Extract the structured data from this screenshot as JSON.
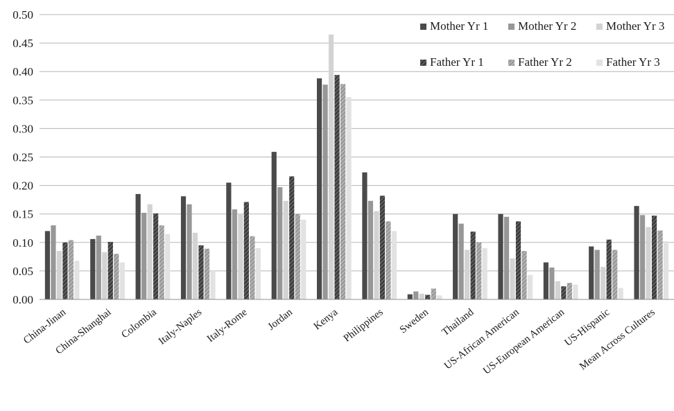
{
  "chart_data": {
    "type": "bar",
    "title": "",
    "xlabel": "",
    "ylabel": "",
    "ylim": [
      0,
      0.5
    ],
    "yticks": [
      "0.00",
      "0.05",
      "0.10",
      "0.15",
      "0.20",
      "0.25",
      "0.30",
      "0.35",
      "0.40",
      "0.45",
      "0.50"
    ],
    "grid": true,
    "legend": "top-right",
    "categories": [
      "China-Jinan",
      "China-Shanghai",
      "Colombia",
      "Italy-Naples",
      "Italy-Rome",
      "Jordan",
      "Kenya",
      "Philippines",
      "Sweden",
      "Thailand",
      "US-African American",
      "US-European American",
      "US-Hispanic",
      "Mean Across Cultures"
    ],
    "series": [
      {
        "name": "Mother Yr 1",
        "color": "#4a4a4a",
        "pattern": "solid",
        "values": [
          0.12,
          0.106,
          0.185,
          0.181,
          0.205,
          0.259,
          0.388,
          0.223,
          0.009,
          0.15,
          0.15,
          0.065,
          0.093,
          0.164
        ]
      },
      {
        "name": "Mother Yr 2",
        "color": "#979797",
        "pattern": "solid",
        "values": [
          0.13,
          0.112,
          0.152,
          0.167,
          0.158,
          0.197,
          0.377,
          0.173,
          0.014,
          0.133,
          0.145,
          0.056,
          0.087,
          0.148
        ]
      },
      {
        "name": "Mother Yr 3",
        "color": "#d3d3d3",
        "pattern": "solid",
        "values": [
          0.085,
          0.083,
          0.167,
          0.117,
          0.15,
          0.173,
          0.465,
          0.155,
          0.01,
          0.087,
          0.072,
          0.032,
          0.057,
          0.127
        ]
      },
      {
        "name": "Father Yr 1",
        "color": "#555555",
        "pattern": "diagonal",
        "values": [
          0.1,
          0.101,
          0.151,
          0.095,
          0.171,
          0.216,
          0.394,
          0.182,
          0.008,
          0.119,
          0.137,
          0.023,
          0.105,
          0.147
        ]
      },
      {
        "name": "Father Yr 2",
        "color": "#a6a6a6",
        "pattern": "diagonal",
        "values": [
          0.104,
          0.08,
          0.13,
          0.089,
          0.111,
          0.15,
          0.378,
          0.137,
          0.019,
          0.1,
          0.085,
          0.029,
          0.087,
          0.121
        ]
      },
      {
        "name": "Father Yr 3",
        "color": "#e2e2e2",
        "pattern": "solid",
        "values": [
          0.068,
          0.065,
          0.115,
          0.05,
          0.09,
          0.14,
          0.355,
          0.12,
          0.007,
          0.09,
          0.043,
          0.026,
          0.02,
          0.102
        ]
      }
    ]
  }
}
